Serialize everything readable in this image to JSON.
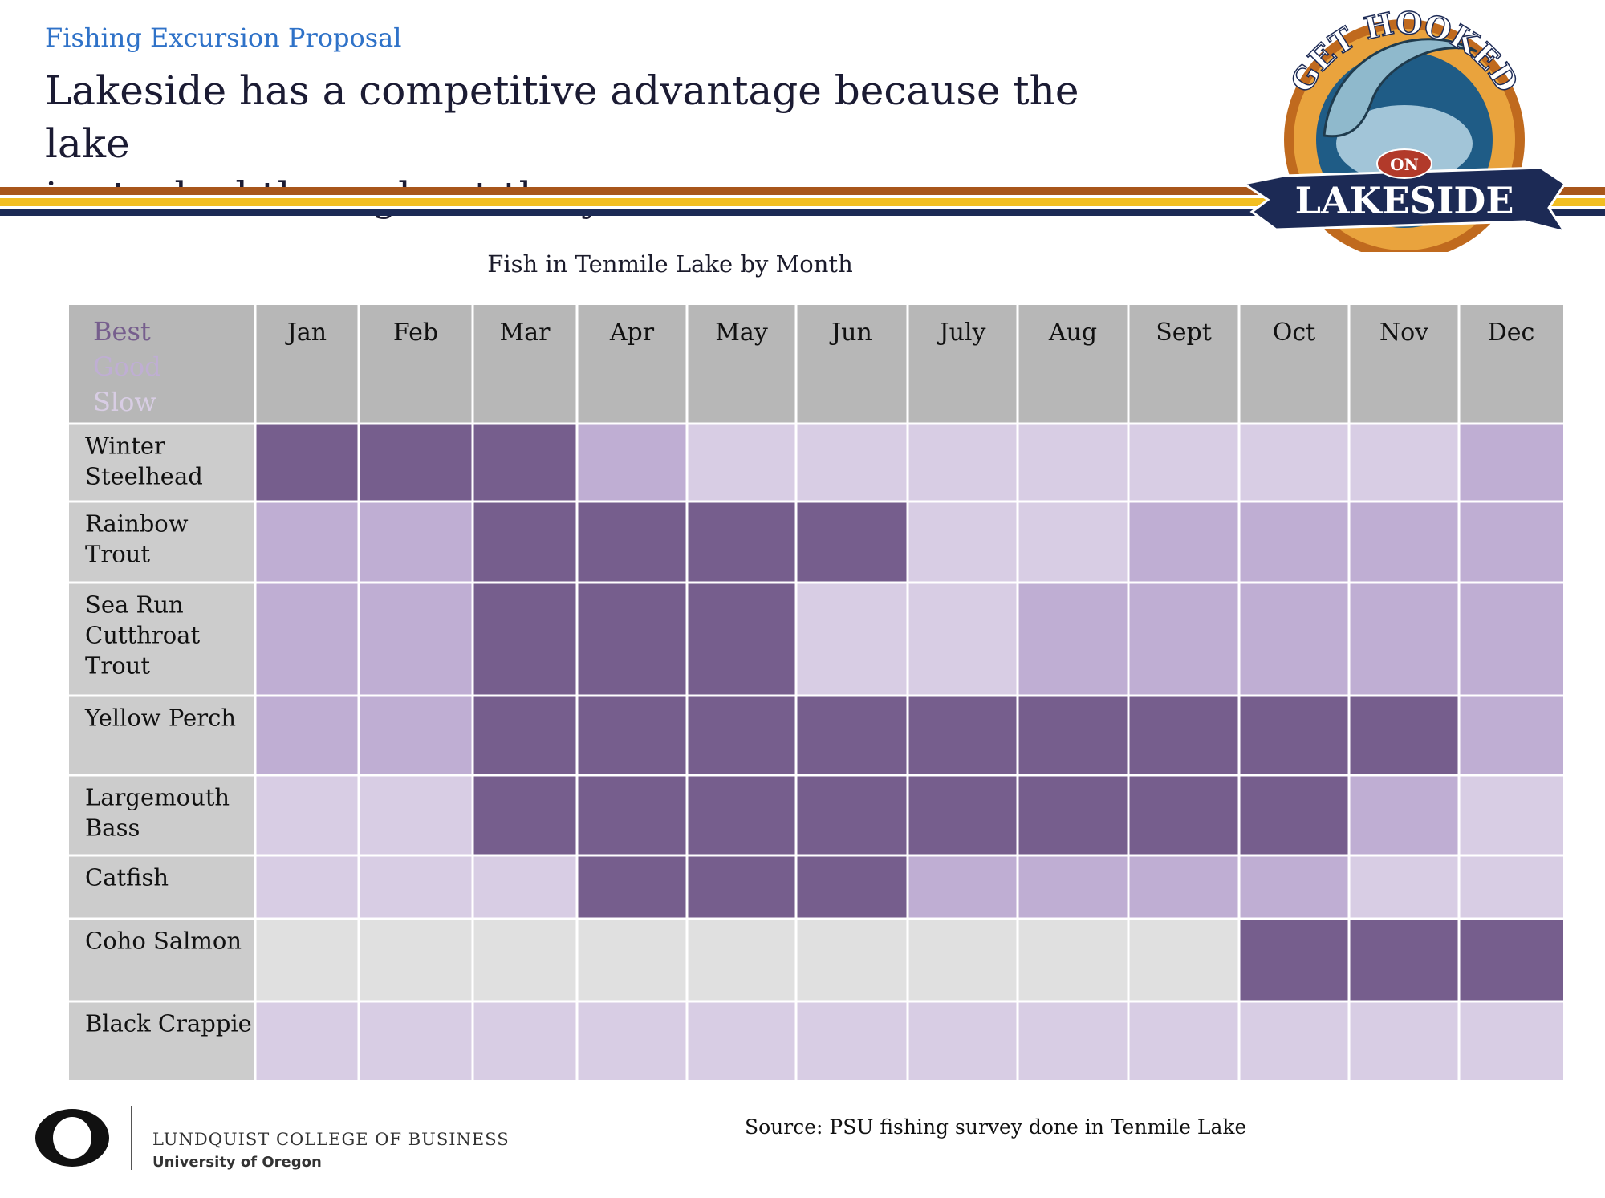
{
  "header": {
    "subtitle": "Fishing Excursion Proposal",
    "title_line1": "Lakeside has a competitive advantage because the lake",
    "title_line2": "is stocked throughout the year"
  },
  "brand_logo": {
    "text_top": "GET HOOKED",
    "text_on": "ON",
    "text_bottom": "LAKESIDE"
  },
  "colors": {
    "best": "#765e8d",
    "good": "#bfaed3",
    "slow": "#d8cde4",
    "none": "#e0e0e0",
    "header_bg": "#b7b7b7",
    "rowlabel_bg": "#cccccc",
    "stripe_orange": "#a8561b",
    "stripe_yellow": "#f2be22",
    "stripe_navy": "#1c2a55",
    "subtitle_blue": "#2f72c8"
  },
  "chart_data": {
    "type": "heatmap",
    "title": "Fish in Tenmile Lake by Month",
    "legend": [
      {
        "label": "Best",
        "level": "best"
      },
      {
        "label": "Good",
        "level": "good"
      },
      {
        "label": "Slow",
        "level": "slow"
      }
    ],
    "legend_placement": "top-left",
    "columns": [
      "Jan",
      "Feb",
      "Mar",
      "Apr",
      "May",
      "Jun",
      "July",
      "Aug",
      "Sept",
      "Oct",
      "Nov",
      "Dec"
    ],
    "rows": [
      {
        "name": [
          "Winter",
          "Steelhead"
        ],
        "values": [
          "best",
          "best",
          "best",
          "good",
          "slow",
          "slow",
          "slow",
          "slow",
          "slow",
          "slow",
          "slow",
          "good"
        ]
      },
      {
        "name": [
          "Rainbow",
          "Trout"
        ],
        "values": [
          "good",
          "good",
          "best",
          "best",
          "best",
          "best",
          "slow",
          "slow",
          "good",
          "good",
          "good",
          "good"
        ]
      },
      {
        "name": [
          "Sea Run",
          "Cutthroat",
          "Trout"
        ],
        "values": [
          "good",
          "good",
          "best",
          "best",
          "best",
          "slow",
          "slow",
          "good",
          "good",
          "good",
          "good",
          "good"
        ]
      },
      {
        "name": [
          "Yellow Perch"
        ],
        "values": [
          "good",
          "good",
          "best",
          "best",
          "best",
          "best",
          "best",
          "best",
          "best",
          "best",
          "best",
          "good"
        ]
      },
      {
        "name": [
          "Largemouth",
          "Bass"
        ],
        "values": [
          "slow",
          "slow",
          "best",
          "best",
          "best",
          "best",
          "best",
          "best",
          "best",
          "best",
          "good",
          "slow"
        ]
      },
      {
        "name": [
          "Catfish"
        ],
        "values": [
          "slow",
          "slow",
          "slow",
          "best",
          "best",
          "best",
          "good",
          "good",
          "good",
          "good",
          "slow",
          "slow"
        ]
      },
      {
        "name": [
          "Coho Salmon"
        ],
        "values": [
          "none",
          "none",
          "none",
          "none",
          "none",
          "none",
          "none",
          "none",
          "none",
          "best",
          "best",
          "best"
        ]
      },
      {
        "name": [
          "Black Crappie"
        ],
        "values": [
          "slow",
          "slow",
          "slow",
          "slow",
          "slow",
          "slow",
          "slow",
          "slow",
          "slow",
          "slow",
          "slow",
          "slow"
        ]
      }
    ]
  },
  "source": "Source: PSU fishing survey done in Tenmile Lake",
  "footer": {
    "college": "LUNDQUIST COLLEGE OF BUSINESS",
    "university": "University of Oregon"
  }
}
